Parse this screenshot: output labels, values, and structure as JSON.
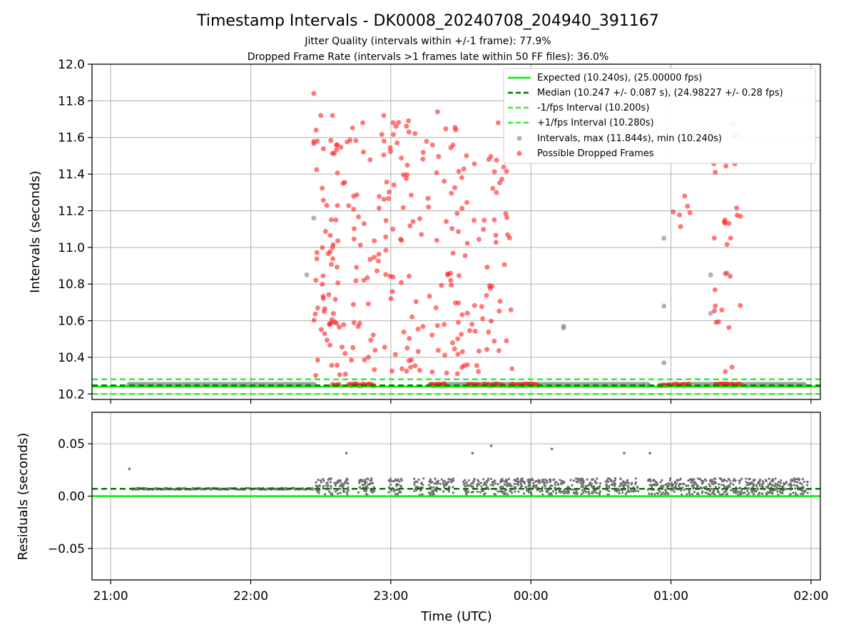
{
  "title": "Timestamp Intervals - DK0008_20240708_204940_391167",
  "subtitle_lines": [
    "Jitter Quality (intervals within +/-1 frame): 77.9%",
    "Dropped Frame Rate (intervals >1 frames late within 50 FF files): 36.0%"
  ],
  "colors": {
    "expected": "#00ee00",
    "median": "#007a00",
    "interval_bound": "#33ee33",
    "intervals": "#808080",
    "dropped": "#ff2020",
    "residuals": "#707070",
    "grid": "#b0b0b0"
  },
  "chart_data": [
    {
      "type": "scatter",
      "panel": "top",
      "ylabel": "Intervals (seconds)",
      "xlabel": "",
      "ylim": [
        10.17,
        12.0
      ],
      "xlim_minutes_after_2000": [
        52,
        364
      ],
      "yticks": [
        "10.2",
        "10.4",
        "10.6",
        "10.8",
        "11.0",
        "11.2",
        "11.4",
        "11.6",
        "11.8",
        "12.0"
      ],
      "ytick_values": [
        10.2,
        10.4,
        10.6,
        10.8,
        11.0,
        11.2,
        11.4,
        11.6,
        11.8,
        12.0
      ],
      "grid": true,
      "legend_position": "top-right",
      "reference_lines": [
        {
          "name": "Expected (10.240s), (25.00000 fps)",
          "y": 10.24,
          "style": "solid",
          "color_key": "expected"
        },
        {
          "name": "Median (10.247 +/- 0.087 s), (24.98227 +/- 0.28 fps)",
          "y": 10.247,
          "style": "dashed",
          "color_key": "median"
        },
        {
          "name": "-1/fps Interval (10.200s)",
          "y": 10.2,
          "style": "dashed",
          "color_key": "interval_bound"
        },
        {
          "name": "+1/fps Interval (10.280s)",
          "y": 10.28,
          "style": "dashed",
          "color_key": "interval_bound"
        }
      ],
      "series": [
        {
          "name": "Intervals, max (11.844s), min (10.240s)",
          "color_key": "intervals",
          "baseline_band_minutes": [
            [
              68,
              147
            ],
            [
              197,
              290
            ],
            [
              305,
              357
            ]
          ],
          "baseline_y": 10.25,
          "points_minutes_value": [
            [
              144,
              10.85
            ],
            [
              147,
              11.16
            ],
            [
              254,
              10.57
            ],
            [
              254,
              10.56
            ],
            [
              297,
              10.37
            ],
            [
              297,
              10.68
            ],
            [
              297,
              11.05
            ],
            [
              317,
              10.85
            ],
            [
              317,
              10.64
            ],
            [
              324,
              10.86
            ]
          ]
        },
        {
          "name": "Possible Dropped Frames",
          "color_key": "dropped",
          "cluster_ranges_minutes": [
            [
              147,
              158
            ],
            [
              158,
              188
            ],
            [
              187,
              214
            ],
            [
              214,
              232
            ],
            [
              297,
              310
            ],
            [
              318,
              330
            ]
          ],
          "baseline_clusters_minutes": [
            [
              155,
              158
            ],
            [
              162,
              173
            ],
            [
              197,
              203
            ],
            [
              213,
              218
            ],
            [
              220,
              228
            ],
            [
              231,
              243
            ],
            [
              295,
              308
            ],
            [
              319,
              330
            ]
          ],
          "baseline_y": 10.25,
          "extreme_points_minutes_value": [
            [
              147,
              11.84
            ],
            [
              148,
              11.64
            ],
            [
              150,
              11.72
            ],
            [
              155,
              11.72
            ],
            [
              168,
              11.68
            ],
            [
              177,
              11.72
            ],
            [
              181,
              11.68
            ],
            [
              200,
              11.74
            ],
            [
              222,
              11.48
            ],
            [
              226,
              11.68
            ],
            [
              318,
              11.62
            ],
            [
              319,
              11.41
            ]
          ]
        }
      ]
    },
    {
      "type": "scatter",
      "panel": "bottom",
      "ylabel": "Residuals (seconds)",
      "xlabel": "Time (UTC)",
      "ylim": [
        -0.08,
        0.08
      ],
      "yticks": [
        "−0.05",
        "0.00",
        "0.05"
      ],
      "ytick_values": [
        -0.05,
        0.0,
        0.05
      ],
      "xticks": [
        "21:00",
        "22:00",
        "23:00",
        "00:00",
        "01:00",
        "02:00"
      ],
      "xtick_minutes_after_2000": [
        60,
        120,
        180,
        240,
        300,
        360
      ],
      "grid": true,
      "reference_lines": [
        {
          "name": "Expected",
          "y": 0.0,
          "style": "solid",
          "color_key": "expected"
        },
        {
          "name": "Median",
          "y": 0.007,
          "style": "dashed",
          "color_key": "median"
        }
      ],
      "series": [
        {
          "name": "Residuals",
          "color_key": "residuals",
          "flat_band_minutes": [
            69,
            147
          ],
          "flat_band_value": 0.007,
          "scatter_band_minutes": [
            [
              148,
              162
            ],
            [
              166,
              173
            ],
            [
              179,
              185
            ],
            [
              190,
              194
            ],
            [
              196,
              207
            ],
            [
              211,
              216
            ],
            [
              217,
              244
            ],
            [
              244,
              250
            ],
            [
              250,
              270
            ],
            [
              272,
              286
            ],
            [
              290,
              359
            ]
          ],
          "scatter_band_value_range": [
            0.001,
            0.017
          ],
          "outliers_minutes_value": [
            [
              68,
              0.026
            ],
            [
              161,
              0.041
            ],
            [
              215,
              0.041
            ],
            [
              223,
              0.048
            ],
            [
              249,
              0.045
            ],
            [
              280,
              0.041
            ],
            [
              291,
              0.041
            ]
          ]
        }
      ]
    }
  ]
}
